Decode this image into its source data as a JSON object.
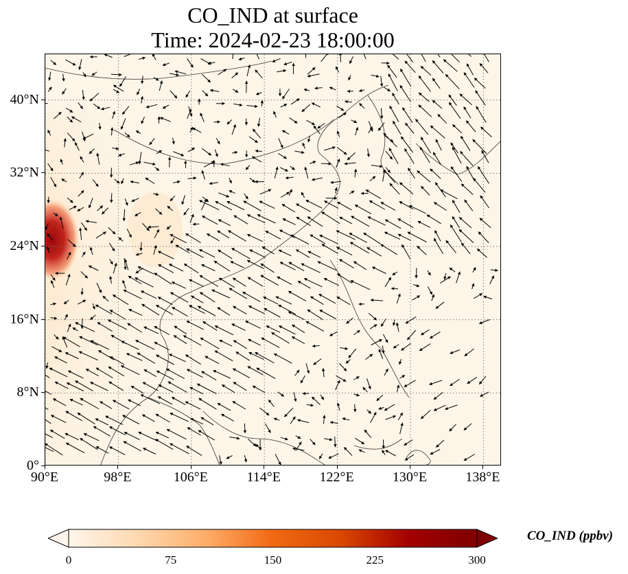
{
  "title": {
    "line1": "CO_IND at surface",
    "line2": "Time: 2024-02-23 18:00:00"
  },
  "map": {
    "lon_range": [
      90,
      140
    ],
    "lat_range": [
      0,
      45
    ],
    "y_ticks": [
      {
        "value": 0,
        "label": "0°"
      },
      {
        "value": 8,
        "label": "8°N"
      },
      {
        "value": 16,
        "label": "16°N"
      },
      {
        "value": 24,
        "label": "24°N"
      },
      {
        "value": 32,
        "label": "32°N"
      },
      {
        "value": 40,
        "label": "40°N"
      }
    ],
    "x_ticks": [
      {
        "value": 90,
        "label": "90°E"
      },
      {
        "value": 98,
        "label": "98°E"
      },
      {
        "value": 106,
        "label": "106°E"
      },
      {
        "value": 114,
        "label": "114°E"
      },
      {
        "value": 122,
        "label": "122°E"
      },
      {
        "value": 130,
        "label": "130°E"
      },
      {
        "value": 138,
        "label": "138°E"
      }
    ],
    "gridlines": "dotted",
    "field_color": "#fdf5e8",
    "wind_vectors": "black arrows",
    "hotspot_color": "#9b0a0a"
  },
  "colorbar": {
    "title": "CO_IND (ppbv)",
    "min": 0,
    "max": 300,
    "labels": [
      {
        "value": 0,
        "label": "0"
      },
      {
        "value": 75,
        "label": "75"
      },
      {
        "value": 150,
        "label": "150"
      },
      {
        "value": 225,
        "label": "225"
      },
      {
        "value": 300,
        "label": "300"
      }
    ],
    "colors": [
      "#fff5eb",
      "#fdd9b0",
      "#fdae6b",
      "#f16913",
      "#d94801",
      "#a30000",
      "#7f0000"
    ]
  }
}
